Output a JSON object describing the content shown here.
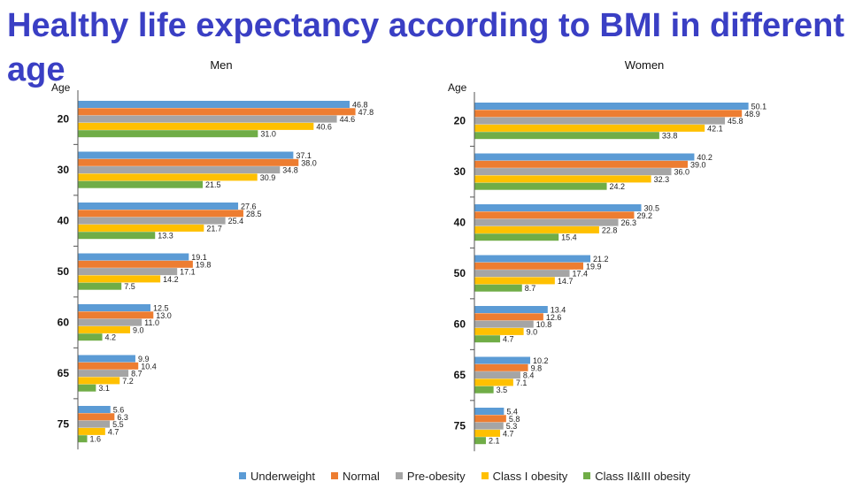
{
  "title": "Healthy life expectancy according to BMI in different age",
  "colors": {
    "title": "#3a3fc4",
    "series": [
      "#5b9bd5",
      "#ed7d31",
      "#a5a5a5",
      "#ffc000",
      "#70ad47"
    ]
  },
  "chart_data": [
    {
      "type": "bar",
      "orientation": "horizontal",
      "title": "Men",
      "ylabel": "Age",
      "categories": [
        "20",
        "30",
        "40",
        "50",
        "60",
        "65",
        "75"
      ],
      "xlim": [
        0,
        55
      ],
      "grid": false,
      "legend": "bottom",
      "series": [
        {
          "name": "Underweight",
          "values": [
            46.8,
            37.1,
            27.6,
            19.1,
            12.5,
            9.9,
            5.6
          ]
        },
        {
          "name": "Normal",
          "values": [
            47.8,
            38.0,
            28.5,
            19.8,
            13.0,
            10.4,
            6.3
          ]
        },
        {
          "name": "Pre-obesity",
          "values": [
            44.6,
            34.8,
            25.4,
            17.1,
            11.0,
            8.7,
            5.5
          ]
        },
        {
          "name": "Class I obesity",
          "values": [
            40.6,
            30.9,
            21.7,
            14.2,
            9.0,
            7.2,
            4.7
          ]
        },
        {
          "name": "Class II&III obesity",
          "values": [
            31.0,
            21.5,
            13.3,
            7.5,
            4.2,
            3.1,
            1.6
          ]
        }
      ]
    },
    {
      "type": "bar",
      "orientation": "horizontal",
      "title": "Women",
      "ylabel": "Age",
      "categories": [
        "20",
        "30",
        "40",
        "50",
        "60",
        "65",
        "75"
      ],
      "xlim": [
        0,
        55
      ],
      "grid": false,
      "legend": "bottom",
      "series": [
        {
          "name": "Underweight",
          "values": [
            50.1,
            40.2,
            30.5,
            21.2,
            13.4,
            10.2,
            5.4
          ]
        },
        {
          "name": "Normal",
          "values": [
            48.9,
            39.0,
            29.2,
            19.9,
            12.6,
            9.8,
            5.8
          ]
        },
        {
          "name": "Pre-obesity",
          "values": [
            45.8,
            36.0,
            26.3,
            17.4,
            10.8,
            8.4,
            5.3
          ]
        },
        {
          "name": "Class I obesity",
          "values": [
            42.1,
            32.3,
            22.8,
            14.7,
            9.0,
            7.1,
            4.7
          ]
        },
        {
          "name": "Class II&III obesity",
          "values": [
            33.8,
            24.2,
            15.4,
            8.7,
            4.7,
            3.5,
            2.1
          ]
        }
      ]
    }
  ]
}
